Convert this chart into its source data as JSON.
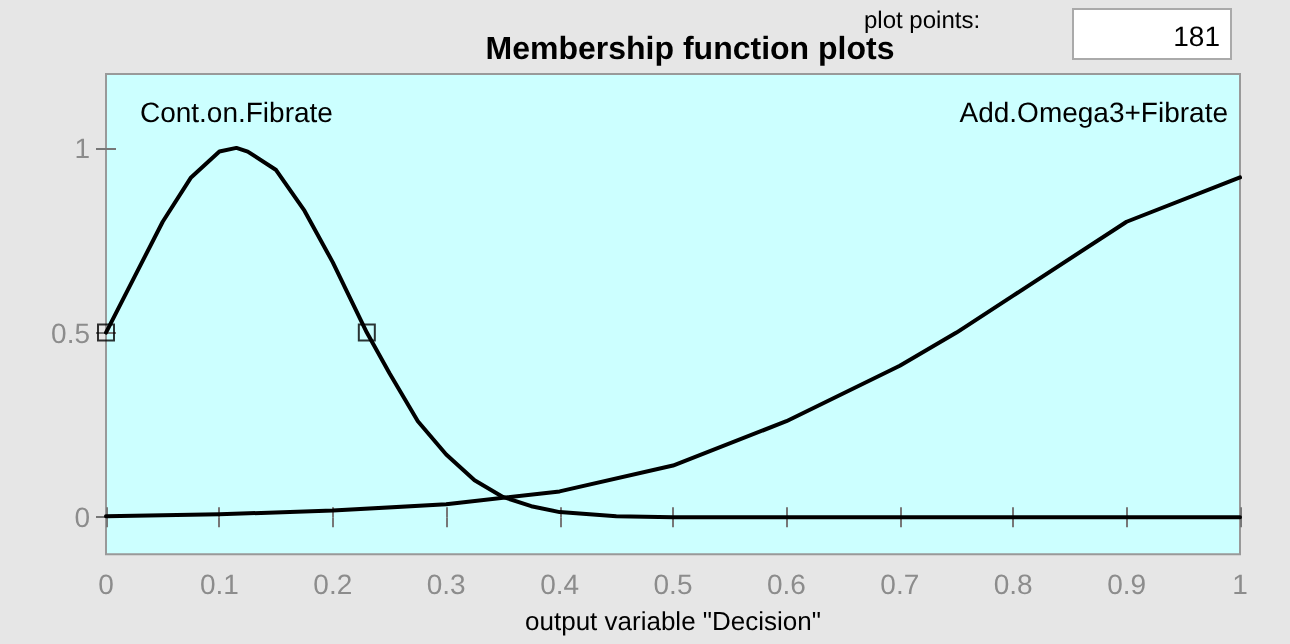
{
  "chart_data": {
    "type": "line",
    "title": "Membership function plots",
    "xlabel": "output variable \"Decision\"",
    "annotations": [
      "plot points:",
      "181"
    ],
    "xlim": [
      0,
      1
    ],
    "xticks": [
      0,
      0.1,
      0.2,
      0.3,
      0.4,
      0.5,
      0.6,
      0.7,
      0.8,
      0.9,
      1
    ],
    "ylim": [
      -0.1,
      1.2
    ],
    "yticks": [
      0,
      0.5,
      1
    ],
    "grid": false,
    "legend": false,
    "marker": "none",
    "line_style": "solid",
    "series": [
      {
        "name": "Cont.on.Fibrate",
        "color": "#000000",
        "x": [
          0,
          0.025,
          0.05,
          0.075,
          0.1,
          0.115,
          0.125,
          0.15,
          0.175,
          0.2,
          0.23,
          0.25,
          0.275,
          0.3,
          0.325,
          0.35,
          0.375,
          0.4,
          0.45,
          0.5,
          0.6,
          0.8,
          1
        ],
        "values": [
          0.5,
          0.65,
          0.8,
          0.92,
          0.99,
          1,
          0.99,
          0.94,
          0.83,
          0.69,
          0.5,
          0.39,
          0.26,
          0.17,
          0.1,
          0.055,
          0.03,
          0.014,
          0.003,
          0,
          0,
          0,
          0
        ]
      },
      {
        "name": "Add.Omega3+Fibrate",
        "color": "#000000",
        "x": [
          0,
          0.1,
          0.2,
          0.3,
          0.4,
          0.5,
          0.6,
          0.7,
          0.75,
          0.8,
          0.9,
          1
        ],
        "values": [
          0.003,
          0.008,
          0.018,
          0.035,
          0.07,
          0.14,
          0.26,
          0.41,
          0.5,
          0.6,
          0.8,
          0.92
        ]
      },
      {
        "type": "scatter",
        "color": "#000000",
        "marker": "square",
        "x": [
          0,
          0.23
        ],
        "values": [
          0.5,
          0.5
        ]
      }
    ]
  }
}
